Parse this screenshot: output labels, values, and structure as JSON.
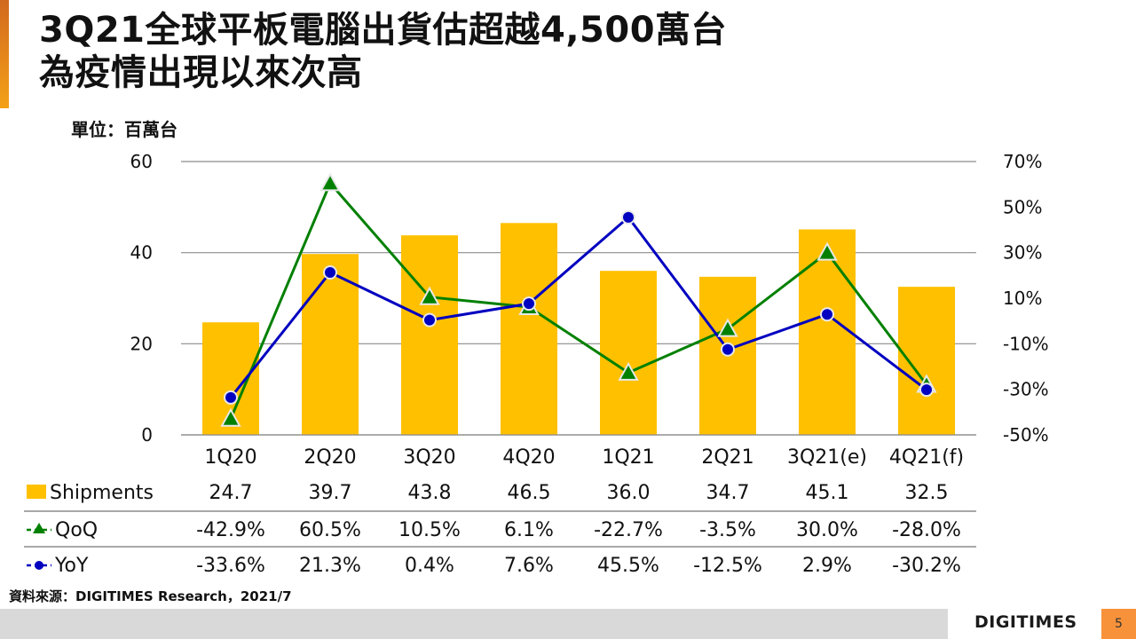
{
  "slide": {
    "title_line1": "3Q21全球平板電腦出貨估超越4,500萬台",
    "title_line2": "為疫情出現以來次高",
    "unit_label": "單位：百萬台",
    "source": "資料來源：DIGITIMES Research，2021/7",
    "logo": "DIGITIMES",
    "page_number": "5"
  },
  "colors": {
    "bar": "#FFC000",
    "qoq": "#008000",
    "yoy": "#0000C0",
    "accent": "#F7923A",
    "gridline": "#8c8c8c"
  },
  "chart_data": {
    "type": "bar",
    "title": "3Q21全球平板電腦出貨估超越4,500萬台 為疫情出現以來次高",
    "ylabel": "單位：百萬台",
    "categories": [
      "1Q20",
      "2Q20",
      "3Q20",
      "4Q20",
      "1Q21",
      "2Q21",
      "3Q21(e)",
      "4Q21(f)"
    ],
    "series": [
      {
        "name": "Shipments",
        "type": "bar",
        "axis": "left",
        "values": [
          24.7,
          39.7,
          43.8,
          46.5,
          36.0,
          34.7,
          45.1,
          32.5
        ],
        "labels": [
          "24.7",
          "39.7",
          "43.8",
          "46.5",
          "36.0",
          "34.7",
          "45.1",
          "32.5"
        ]
      },
      {
        "name": "QoQ",
        "type": "line",
        "marker": "triangle",
        "axis": "right",
        "values": [
          -42.9,
          60.5,
          10.5,
          6.1,
          -22.7,
          -3.5,
          30.0,
          -28.0
        ],
        "labels": [
          "-42.9%",
          "60.5%",
          "10.5%",
          "6.1%",
          "-22.7%",
          "-3.5%",
          "30.0%",
          "-28.0%"
        ]
      },
      {
        "name": "YoY",
        "type": "line",
        "marker": "circle",
        "axis": "right",
        "values": [
          -33.6,
          21.3,
          0.4,
          7.6,
          45.5,
          -12.5,
          2.9,
          -30.2
        ],
        "labels": [
          "-33.6%",
          "21.3%",
          "0.4%",
          "7.6%",
          "45.5%",
          "-12.5%",
          "2.9%",
          "-30.2%"
        ]
      }
    ],
    "left_axis": {
      "range": [
        0,
        60
      ],
      "ticks": [
        "0",
        "20",
        "40",
        "60"
      ],
      "tick_values": [
        0,
        20,
        40,
        60
      ]
    },
    "right_axis": {
      "range": [
        -50,
        70
      ],
      "ticks": [
        "-50%",
        "-30%",
        "-10%",
        "10%",
        "30%",
        "50%",
        "70%"
      ],
      "tick_values": [
        -50,
        -30,
        -10,
        10,
        30,
        50,
        70
      ]
    },
    "grid": true,
    "legend": "bottom data table"
  }
}
